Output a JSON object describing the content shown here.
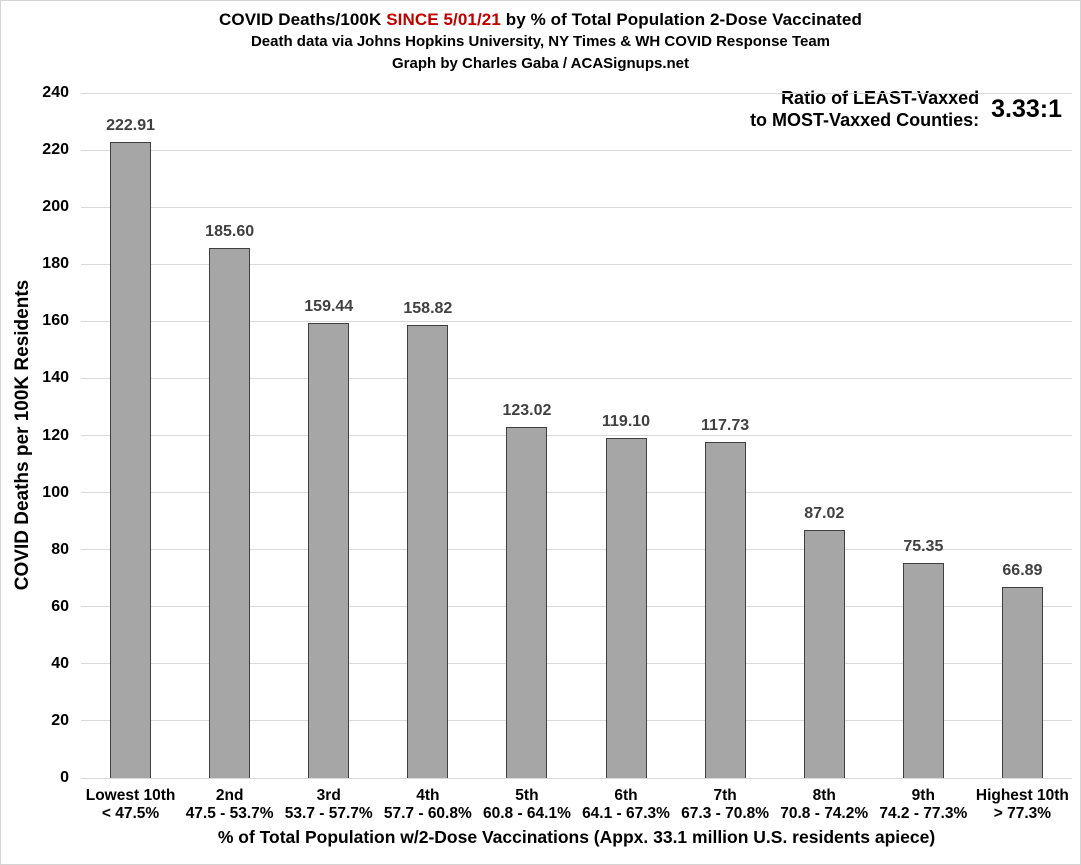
{
  "header": {
    "title_prefix": "COVID Deaths/100K ",
    "title_highlight": "SINCE 5/01/21",
    "title_suffix": " by % of Total Population 2-Dose Vaccinated",
    "highlight_color": "#c00000",
    "subtitle": "Death data via Johns Hopkins University, NY Times & WH COVID Response Team",
    "credit": "Graph by Charles Gaba / ACASignups.net"
  },
  "ratio_annotation": {
    "label_line1": "Ratio of LEAST-Vaxxed",
    "label_line2": "to MOST-Vaxxed Counties:",
    "value": "3.33:1"
  },
  "chart_data": {
    "type": "bar",
    "title": "COVID Deaths/100K SINCE 5/01/21 by % of Total Population 2-Dose Vaccinated",
    "subtitle": "Death data via Johns Hopkins University, NY Times & WH COVID Response Team",
    "credit": "Graph by Charles Gaba / ACASignups.net",
    "categories": [
      "Lowest 10th",
      "2nd",
      "3rd",
      "4th",
      "5th",
      "6th",
      "7th",
      "8th",
      "9th",
      "Highest 10th"
    ],
    "category_ranges": [
      "< 47.5%",
      "47.5 - 53.7%",
      "53.7 - 57.7%",
      "57.7 - 60.8%",
      "60.8 - 64.1%",
      "64.1 - 67.3%",
      "67.3 - 70.8%",
      "70.8 - 74.2%",
      "74.2 - 77.3%",
      "> 77.3%"
    ],
    "values": [
      222.91,
      185.6,
      159.44,
      158.82,
      123.02,
      119.1,
      117.73,
      87.02,
      75.35,
      66.89
    ],
    "value_labels": [
      "222.91",
      "185.60",
      "159.44",
      "158.82",
      "123.02",
      "119.10",
      "117.73",
      "87.02",
      "75.35",
      "66.89"
    ],
    "xlabel": "% of Total Population w/2-Dose Vaccinations (Appx. 33.1 million U.S. residents apiece)",
    "ylabel": "COVID Deaths per 100K Residents",
    "ylim": [
      0,
      240
    ],
    "yticks": [
      0,
      20,
      40,
      60,
      80,
      100,
      120,
      140,
      160,
      180,
      200,
      220,
      240
    ],
    "grid": true,
    "legend": "none",
    "annotation": "Ratio of LEAST-Vaxxed to MOST-Vaxxed Counties: 3.33:1",
    "colors": {
      "bar_fill": "#a6a6a6",
      "bar_border": "#3f3f3f",
      "gridline": "#d9d9d9",
      "value_label": "#404040",
      "axis_text": "#000000",
      "title_highlight": "#c00000"
    }
  }
}
